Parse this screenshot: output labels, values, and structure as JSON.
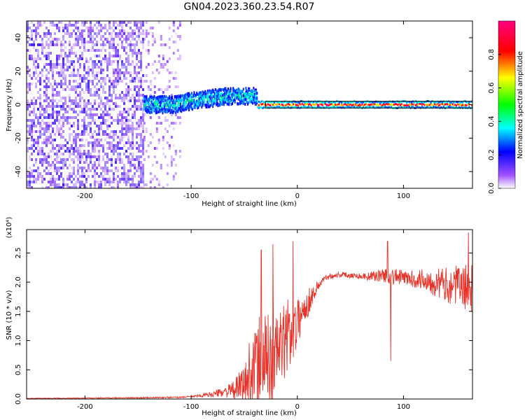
{
  "figure_title": "GN04.2023.360.23.54.R07",
  "chart_data": [
    {
      "type": "heatmap",
      "title": "GN04.2023.360.23.54.R07",
      "xlabel": "Height of straight line (km)",
      "ylabel": "Frequency (Hz)",
      "xlim": [
        -255,
        165
      ],
      "ylim": [
        -50,
        50
      ],
      "x_ticks": [
        "-200",
        "-100",
        "0",
        "100"
      ],
      "y_ticks": [
        "-40",
        "-20",
        "0",
        "20",
        "40"
      ],
      "colorbar": {
        "label": "Normalized spectral amplitude",
        "range": [
          0,
          1
        ],
        "ticks": [
          "0.0",
          "0.2",
          "0.4",
          "0.6",
          "0.8"
        ],
        "colors": [
          "#ffffff",
          "#a050ff",
          "#0000ff",
          "#00ffff",
          "#00ff00",
          "#ffff00",
          "#ff0000",
          "#ff0080"
        ]
      },
      "regions": [
        {
          "x_range": [
            -255,
            -145
          ],
          "y_range": [
            -50,
            50
          ],
          "amplitude": [
            0.0,
            0.15
          ],
          "description": "broadband noise"
        },
        {
          "x_range": [
            -145,
            -110
          ],
          "y_range": [
            -50,
            50
          ],
          "amplitude": [
            0.0,
            0.08
          ],
          "description": "sparse noise"
        },
        {
          "x_range": [
            -145,
            -38
          ],
          "center_hz": [
            0,
            0,
            3,
            5,
            5
          ],
          "amplitude": [
            0.2,
            0.5
          ],
          "description": "drifting band"
        },
        {
          "x_range": [
            -38,
            165
          ],
          "center_hz": 0,
          "amplitude": [
            0.6,
            1.0
          ],
          "description": "steady tone near 0 Hz"
        }
      ]
    },
    {
      "type": "line",
      "xlabel": "Height of straight line (km)",
      "ylabel": "SNR (10 * v/v)",
      "y_multiplier": "(x10⁴)",
      "xlim": [
        -255,
        165
      ],
      "ylim": [
        0,
        2.9
      ],
      "x_ticks": [
        "-200",
        "-100",
        "0",
        "100"
      ],
      "y_ticks": [
        "0.0",
        "0.5",
        "1.0",
        "1.5",
        "2.0",
        "2.5"
      ],
      "color": "#e8332a",
      "series": [
        {
          "x": [
            -255,
            -150,
            -110,
            -95,
            -80,
            -70,
            -60,
            -50,
            -45,
            -40,
            -35,
            -30,
            -25,
            -20,
            -15,
            -10,
            -5,
            0,
            5,
            10,
            15,
            20,
            25,
            30,
            40,
            50,
            60,
            70,
            80,
            90,
            100,
            110,
            120,
            130,
            140,
            150,
            160,
            165
          ],
          "values": [
            0.01,
            0.02,
            0.03,
            0.05,
            0.08,
            0.12,
            0.15,
            0.25,
            0.35,
            0.45,
            0.6,
            0.7,
            0.65,
            0.8,
            0.9,
            1.0,
            1.1,
            1.3,
            1.5,
            1.65,
            1.8,
            1.95,
            2.05,
            2.1,
            2.13,
            2.12,
            2.1,
            2.1,
            2.12,
            2.1,
            2.08,
            2.05,
            2.05,
            2.0,
            1.95,
            1.95,
            1.9,
            1.9
          ],
          "noise_amplitude": [
            0.005,
            0.01,
            0.01,
            0.02,
            0.05,
            0.08,
            0.15,
            0.35,
            0.7,
            0.8,
            0.9,
            0.8,
            0.8,
            0.8,
            0.7,
            0.6,
            0.5,
            0.4,
            0.3,
            0.25,
            0.15,
            0.1,
            0.05,
            0.05,
            0.05,
            0.05,
            0.05,
            0.08,
            0.12,
            0.15,
            0.12,
            0.15,
            0.2,
            0.25,
            0.3,
            0.35,
            0.4,
            0.4
          ]
        }
      ],
      "spikes": [
        {
          "x": -34,
          "y": 2.55
        },
        {
          "x": -23,
          "y": 2.65
        },
        {
          "x": -9,
          "y": 1.7
        },
        {
          "x": -4,
          "y": 2.7
        },
        {
          "x": 85,
          "y": 2.7
        },
        {
          "x": 88,
          "y": 0.65
        },
        {
          "x": 161,
          "y": 2.85
        }
      ]
    }
  ]
}
